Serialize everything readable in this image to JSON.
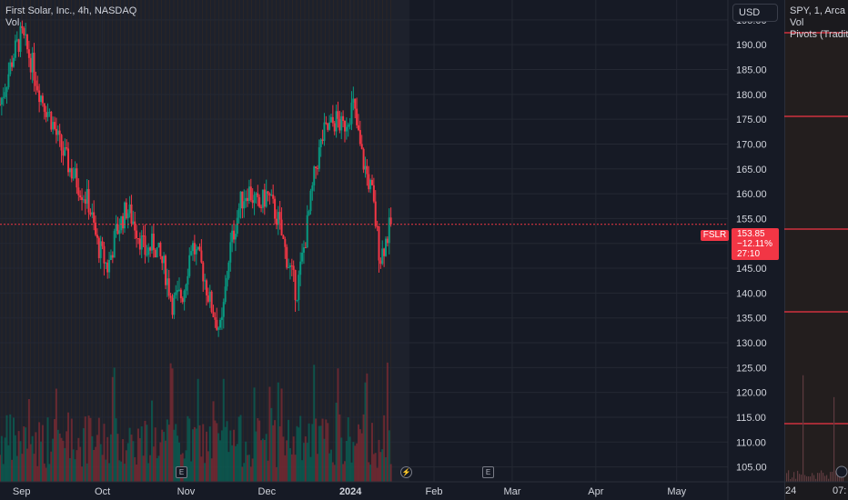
{
  "header": {
    "symbol_line": "First Solar, Inc., 4h, NASDAQ",
    "vol_label": "Vol",
    "currency": "USD"
  },
  "side_panel": {
    "symbol_line": "SPY, 1, Arca",
    "vol_label": "Vol",
    "pivots_label": "Pivots (Traditi",
    "axis_left_label": "24",
    "axis_right_label": "07:"
  },
  "last_price": {
    "ticker": "FSLR",
    "price": "153.85",
    "change": "−12.11%",
    "countdown": "27:10"
  },
  "events": {
    "earnings_label": "E",
    "dividend_label": "⚡"
  },
  "colors": {
    "background": "#161a25",
    "up": "#089981",
    "down": "#f23645",
    "grid": "#242833",
    "text": "#d1d4dc"
  },
  "chart_data": {
    "type": "candlestick",
    "title": "First Solar, Inc., 4h, NASDAQ",
    "ylim": [
      102,
      199
    ],
    "y_ticks": [
      105,
      110,
      115,
      120,
      125,
      130,
      135,
      140,
      145,
      150,
      155,
      160,
      165,
      170,
      175,
      180,
      185,
      190,
      195
    ],
    "x_ticks": [
      "Sep",
      "Oct",
      "Nov",
      "Dec",
      "2024",
      "Feb",
      "Mar",
      "Apr",
      "May"
    ],
    "x_range": [
      "2023-08-24",
      "2024-05-20"
    ],
    "x_tick_dates": [
      "2023-09-01",
      "2023-10-01",
      "2023-11-01",
      "2023-12-01",
      "2024-01-01",
      "2024-02-01",
      "2024-03-01",
      "2024-04-01",
      "2024-05-01"
    ],
    "last_date": "2024-01-16",
    "last_price": 153.85,
    "approx_closes": [
      [
        "2023-08-24",
        178
      ],
      [
        "2023-08-29",
        188
      ],
      [
        "2023-09-01",
        192
      ],
      [
        "2023-09-05",
        186
      ],
      [
        "2023-09-08",
        180
      ],
      [
        "2023-09-12",
        175
      ],
      [
        "2023-09-15",
        170
      ],
      [
        "2023-09-19",
        165
      ],
      [
        "2023-09-22",
        162
      ],
      [
        "2023-09-26",
        158
      ],
      [
        "2023-09-29",
        150
      ],
      [
        "2023-10-03",
        145
      ],
      [
        "2023-10-06",
        152
      ],
      [
        "2023-10-10",
        157
      ],
      [
        "2023-10-13",
        154
      ],
      [
        "2023-10-17",
        148
      ],
      [
        "2023-10-20",
        150
      ],
      [
        "2023-10-24",
        145
      ],
      [
        "2023-10-27",
        138
      ],
      [
        "2023-10-31",
        140
      ],
      [
        "2023-11-03",
        150
      ],
      [
        "2023-11-07",
        145
      ],
      [
        "2023-11-10",
        138
      ],
      [
        "2023-11-14",
        132
      ],
      [
        "2023-11-17",
        148
      ],
      [
        "2023-11-21",
        158
      ],
      [
        "2023-11-24",
        161
      ],
      [
        "2023-11-28",
        157
      ],
      [
        "2023-12-01",
        160
      ],
      [
        "2023-12-05",
        155
      ],
      [
        "2023-12-08",
        148
      ],
      [
        "2023-12-12",
        140
      ],
      [
        "2023-12-15",
        150
      ],
      [
        "2023-12-19",
        165
      ],
      [
        "2023-12-22",
        172
      ],
      [
        "2023-12-27",
        175
      ],
      [
        "2023-12-29",
        173
      ],
      [
        "2024-01-02",
        178
      ],
      [
        "2024-01-05",
        168
      ],
      [
        "2024-01-09",
        160
      ],
      [
        "2024-01-12",
        147
      ],
      [
        "2024-01-16",
        153.85
      ]
    ]
  },
  "side_chart_data": {
    "type": "line",
    "pivot_levels": [
      "R (~p. 36)",
      "P (~p. 128)",
      "S (~p. 252)",
      "S2 (~p. 343)",
      "S3 (~p. 466)"
    ]
  }
}
